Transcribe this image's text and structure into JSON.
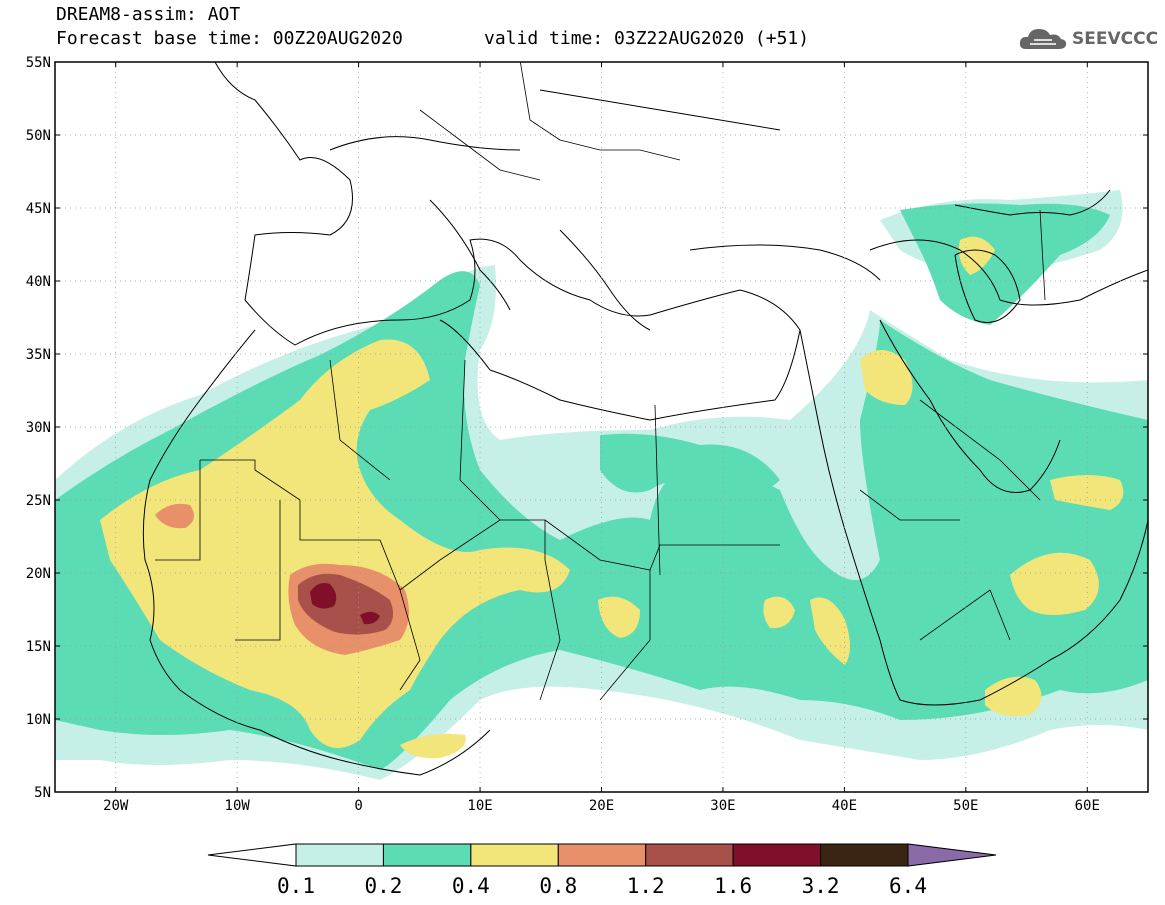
{
  "header": {
    "title": "DREAM8-assim: AOT",
    "base_time": "Forecast base time: 00Z20AUG2020",
    "valid_time": "valid time: 03Z22AUG2020 (+51)"
  },
  "brand": {
    "name": "SEEVCCC",
    "icon": "cloud-logo-icon",
    "color": "#666666"
  },
  "map": {
    "lon_range": [
      -25,
      65
    ],
    "lat_range": [
      5,
      55
    ],
    "lat_ticks": [
      {
        "value": 55,
        "label": "55N"
      },
      {
        "value": 50,
        "label": "50N"
      },
      {
        "value": 45,
        "label": "45N"
      },
      {
        "value": 40,
        "label": "40N"
      },
      {
        "value": 35,
        "label": "35N"
      },
      {
        "value": 30,
        "label": "30N"
      },
      {
        "value": 25,
        "label": "25N"
      },
      {
        "value": 20,
        "label": "20N"
      },
      {
        "value": 15,
        "label": "15N"
      },
      {
        "value": 10,
        "label": "10N"
      },
      {
        "value": 5,
        "label": "5N"
      }
    ],
    "lon_ticks": [
      {
        "value": -20,
        "label": "20W"
      },
      {
        "value": -10,
        "label": "10W"
      },
      {
        "value": 0,
        "label": "0"
      },
      {
        "value": 10,
        "label": "10E"
      },
      {
        "value": 20,
        "label": "20E"
      },
      {
        "value": 30,
        "label": "30E"
      },
      {
        "value": 40,
        "label": "40E"
      },
      {
        "value": 50,
        "label": "50E"
      },
      {
        "value": 60,
        "label": "60E"
      }
    ],
    "grid": true,
    "colors": {
      "0.1-0.2": "#c6efe8",
      "0.2-0.4": "#5cdcb4",
      "0.4-0.8": "#f2e67a",
      "0.8-1.2": "#e8906a",
      "1.2-1.6": "#a8504a",
      "1.6-3.2": "#80102a",
      "3.2-6.4": "#3a2414",
      "over": "#8a6aa8"
    }
  },
  "colorbar": {
    "labels": [
      "0.1",
      "0.2",
      "0.4",
      "0.8",
      "1.2",
      "1.6",
      "3.2",
      "6.4"
    ],
    "colors": [
      "#c6efe8",
      "#5cdcb4",
      "#f2e67a",
      "#e8906a",
      "#a8504a",
      "#80102a",
      "#3a2414"
    ],
    "under_color": "#ffffff",
    "over_color": "#8a6aa8"
  }
}
